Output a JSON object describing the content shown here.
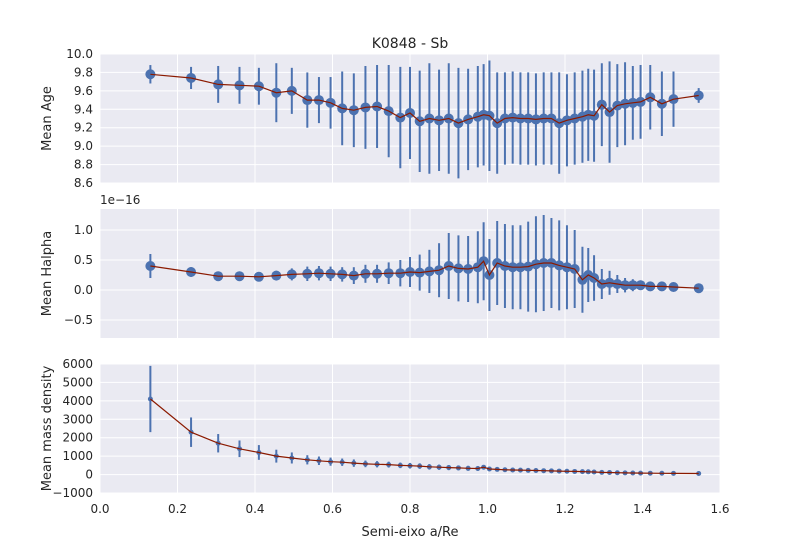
{
  "figure": {
    "title": "K0848 - Sb",
    "xlabel": "Semi-eixo a/Re",
    "x_ticks": [
      "0.0",
      "0.2",
      "0.4",
      "0.6",
      "0.8",
      "1.0",
      "1.2",
      "1.4",
      "1.6"
    ],
    "x_tick_values": [
      0.0,
      0.2,
      0.4,
      0.6,
      0.8,
      1.0,
      1.2,
      1.4,
      1.6
    ],
    "xlim": [
      0.0,
      1.6
    ]
  },
  "colors": {
    "points": "#4c72b0",
    "line": "#8b1a00",
    "panel_bg": "#eaeaf2",
    "grid": "#ffffff"
  },
  "chart_data": [
    {
      "type": "scatter",
      "ylabel": "Mean Age",
      "ylim": [
        8.6,
        10.0
      ],
      "y_ticks": [
        "8.6",
        "8.8",
        "9.0",
        "9.2",
        "9.4",
        "9.6",
        "9.8",
        "10.0"
      ],
      "y_tick_values": [
        8.6,
        8.8,
        9.0,
        9.2,
        9.4,
        9.6,
        9.8,
        10.0
      ],
      "grid": true,
      "x": [
        0.13,
        0.235,
        0.305,
        0.36,
        0.41,
        0.455,
        0.495,
        0.535,
        0.565,
        0.595,
        0.625,
        0.655,
        0.685,
        0.715,
        0.745,
        0.775,
        0.8,
        0.825,
        0.85,
        0.875,
        0.9,
        0.925,
        0.95,
        0.975,
        0.99,
        1.005,
        1.025,
        1.045,
        1.065,
        1.085,
        1.105,
        1.125,
        1.145,
        1.165,
        1.185,
        1.205,
        1.225,
        1.245,
        1.26,
        1.275,
        1.295,
        1.315,
        1.335,
        1.355,
        1.375,
        1.395,
        1.42,
        1.45,
        1.48,
        1.545
      ],
      "y": [
        9.78,
        9.74,
        9.67,
        9.66,
        9.65,
        9.58,
        9.6,
        9.5,
        9.5,
        9.47,
        9.41,
        9.39,
        9.42,
        9.43,
        9.38,
        9.31,
        9.36,
        9.27,
        9.3,
        9.28,
        9.3,
        9.25,
        9.29,
        9.32,
        9.34,
        9.33,
        9.25,
        9.3,
        9.31,
        9.3,
        9.3,
        9.29,
        9.3,
        9.3,
        9.25,
        9.28,
        9.3,
        9.32,
        9.34,
        9.33,
        9.45,
        9.37,
        9.44,
        9.46,
        9.47,
        9.48,
        9.53,
        9.46,
        9.51,
        9.55
      ],
      "yerr": [
        0.1,
        0.12,
        0.2,
        0.2,
        0.2,
        0.32,
        0.25,
        0.3,
        0.25,
        0.28,
        0.4,
        0.4,
        0.45,
        0.45,
        0.5,
        0.55,
        0.5,
        0.55,
        0.6,
        0.55,
        0.6,
        0.6,
        0.55,
        0.55,
        0.55,
        0.6,
        0.55,
        0.5,
        0.5,
        0.5,
        0.5,
        0.5,
        0.5,
        0.5,
        0.55,
        0.5,
        0.5,
        0.5,
        0.5,
        0.5,
        0.45,
        0.55,
        0.45,
        0.45,
        0.4,
        0.4,
        0.35,
        0.35,
        0.3,
        0.08
      ]
    },
    {
      "type": "scatter",
      "ylabel": "Mean Halpha",
      "offset_label": "1e−16",
      "ylim": [
        -0.8,
        1.35
      ],
      "y_ticks": [
        "−0.5",
        "0.0",
        "0.5",
        "1.0"
      ],
      "y_tick_values": [
        -0.5,
        0.0,
        0.5,
        1.0
      ],
      "grid": true,
      "x": [
        0.13,
        0.235,
        0.305,
        0.36,
        0.41,
        0.455,
        0.495,
        0.535,
        0.565,
        0.595,
        0.625,
        0.655,
        0.685,
        0.715,
        0.745,
        0.775,
        0.8,
        0.825,
        0.85,
        0.875,
        0.9,
        0.925,
        0.95,
        0.975,
        0.99,
        1.005,
        1.025,
        1.045,
        1.065,
        1.085,
        1.105,
        1.125,
        1.145,
        1.165,
        1.185,
        1.205,
        1.225,
        1.245,
        1.26,
        1.275,
        1.295,
        1.315,
        1.335,
        1.355,
        1.375,
        1.395,
        1.42,
        1.45,
        1.48,
        1.545
      ],
      "y": [
        0.4,
        0.3,
        0.23,
        0.23,
        0.22,
        0.24,
        0.26,
        0.27,
        0.28,
        0.27,
        0.26,
        0.24,
        0.27,
        0.27,
        0.28,
        0.28,
        0.3,
        0.29,
        0.31,
        0.33,
        0.4,
        0.36,
        0.35,
        0.38,
        0.48,
        0.25,
        0.45,
        0.4,
        0.38,
        0.38,
        0.39,
        0.43,
        0.45,
        0.45,
        0.41,
        0.38,
        0.35,
        0.17,
        0.25,
        0.2,
        0.1,
        0.12,
        0.1,
        0.08,
        0.08,
        0.08,
        0.06,
        0.06,
        0.05,
        0.03
      ],
      "yerr": [
        0.2,
        0.08,
        0.06,
        0.06,
        0.06,
        0.08,
        0.1,
        0.12,
        0.12,
        0.12,
        0.12,
        0.14,
        0.15,
        0.15,
        0.18,
        0.22,
        0.25,
        0.3,
        0.36,
        0.45,
        0.55,
        0.55,
        0.55,
        0.6,
        0.65,
        0.6,
        0.7,
        0.7,
        0.7,
        0.7,
        0.75,
        0.8,
        0.8,
        0.75,
        0.75,
        0.7,
        0.65,
        0.55,
        0.45,
        0.38,
        0.25,
        0.2,
        0.15,
        0.12,
        0.1,
        0.08,
        0.06,
        0.05,
        0.04,
        0.03
      ]
    },
    {
      "type": "scatter",
      "ylabel": "Mean mass density",
      "ylim": [
        -1000,
        6000
      ],
      "y_ticks": [
        "−1000",
        "0",
        "1000",
        "2000",
        "3000",
        "4000",
        "5000",
        "6000"
      ],
      "y_tick_values": [
        -1000,
        0,
        1000,
        2000,
        3000,
        4000,
        5000,
        6000
      ],
      "grid": true,
      "x": [
        0.13,
        0.235,
        0.305,
        0.36,
        0.41,
        0.455,
        0.495,
        0.535,
        0.565,
        0.595,
        0.625,
        0.655,
        0.685,
        0.715,
        0.745,
        0.775,
        0.8,
        0.825,
        0.85,
        0.875,
        0.9,
        0.925,
        0.95,
        0.975,
        0.99,
        1.005,
        1.025,
        1.045,
        1.065,
        1.085,
        1.105,
        1.125,
        1.145,
        1.165,
        1.185,
        1.205,
        1.225,
        1.245,
        1.26,
        1.275,
        1.295,
        1.315,
        1.335,
        1.355,
        1.375,
        1.395,
        1.42,
        1.45,
        1.48,
        1.545
      ],
      "y": [
        4100,
        2300,
        1700,
        1400,
        1200,
        1000,
        900,
        800,
        750,
        700,
        670,
        620,
        580,
        560,
        540,
        500,
        480,
        460,
        420,
        400,
        380,
        360,
        340,
        330,
        400,
        300,
        280,
        260,
        250,
        240,
        230,
        220,
        210,
        200,
        190,
        180,
        170,
        160,
        150,
        140,
        120,
        110,
        100,
        90,
        85,
        80,
        75,
        70,
        65,
        60
      ],
      "yerr": [
        1800,
        800,
        500,
        450,
        400,
        350,
        300,
        250,
        230,
        220,
        200,
        200,
        180,
        170,
        160,
        150,
        150,
        150,
        150,
        140,
        140,
        130,
        130,
        120,
        120,
        110,
        110,
        100,
        100,
        90,
        90,
        90,
        85,
        80,
        80,
        75,
        75,
        70,
        65,
        60,
        50,
        45,
        40,
        35,
        30,
        25,
        20,
        15,
        15,
        10
      ]
    }
  ]
}
